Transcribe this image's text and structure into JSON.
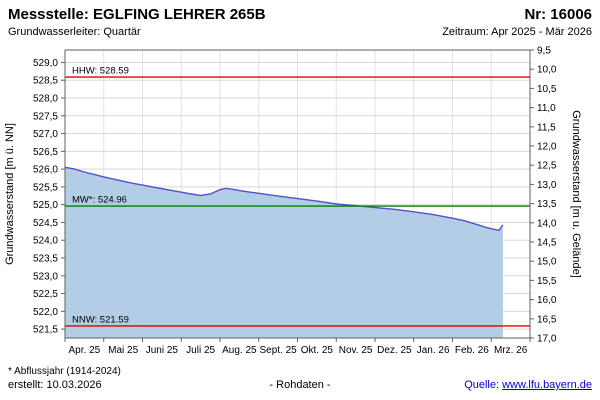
{
  "header": {
    "title": "Messstelle: EGLFING LEHRER 265B",
    "number": "Nr: 16006",
    "aquifer": "Grundwasserleiter: Quartär",
    "period": "Zeitraum: Apr 2025 - Mär 2026"
  },
  "footer": {
    "footnote": "* Abflussjahr (1914-2024)",
    "created": "erstellt:  10.03.2026",
    "center": "- Rohdaten -",
    "source_prefix": "Quelle:",
    "source_link": "www.lfu.bayern.de"
  },
  "chart_data": {
    "type": "area",
    "title": "Grundwasserstand Messstelle EGLFING LEHRER 265B",
    "ylabel_left": "Grundwasserstand [m ü. NN]",
    "ylabel_right": "Grundwasserstand [m u. Gelände]",
    "xlabels": [
      "Apr. 25",
      "Mai 25",
      "Juni 25",
      "Juli 25",
      "Aug. 25",
      "Sept. 25",
      "Okt. 25",
      "Nov. 25",
      "Dez. 25",
      "Jan. 26",
      "Feb. 26",
      "Mrz. 26"
    ],
    "xticks": [
      0,
      1,
      2,
      3,
      4,
      5,
      6,
      7,
      8,
      9,
      10,
      11,
      12
    ],
    "xlim": [
      0,
      12
    ],
    "ylim_left": [
      521.25,
      529.35
    ],
    "ylim_right": [
      9.5,
      17.0
    ],
    "grid": true,
    "yticks_left": [
      {
        "value": 529.0,
        "label": "529,0"
      },
      {
        "value": 528.5,
        "label": "528,5"
      },
      {
        "value": 528.0,
        "label": "528,0"
      },
      {
        "value": 527.5,
        "label": "527,5"
      },
      {
        "value": 527.0,
        "label": "527,0"
      },
      {
        "value": 526.5,
        "label": "526,5"
      },
      {
        "value": 526.0,
        "label": "526,0"
      },
      {
        "value": 525.5,
        "label": "525,5"
      },
      {
        "value": 525.0,
        "label": "525,0"
      },
      {
        "value": 524.5,
        "label": "524,5"
      },
      {
        "value": 524.0,
        "label": "524,0"
      },
      {
        "value": 523.5,
        "label": "523,5"
      },
      {
        "value": 523.0,
        "label": "523,0"
      },
      {
        "value": 522.5,
        "label": "522,5"
      },
      {
        "value": 522.0,
        "label": "522,0"
      },
      {
        "value": 521.5,
        "label": "521,5"
      }
    ],
    "yticks_right": [
      "9,5",
      "10,0",
      "10,5",
      "11,0",
      "11,5",
      "12,0",
      "12,5",
      "13,0",
      "13,5",
      "14,0",
      "14,5",
      "15,0",
      "15,5",
      "16,0",
      "16,5",
      "17,0"
    ],
    "reference_lines": [
      {
        "name": "HHW",
        "label": "HHW: 528.59",
        "value": 528.59,
        "color": "#e00000",
        "label_color": "#000000"
      },
      {
        "name": "MW",
        "label": "MW*: 524.96",
        "value": 524.96,
        "color": "#008000",
        "label_color": "#000000"
      },
      {
        "name": "NNW",
        "label": "NNW: 521.59",
        "value": 521.59,
        "color": "#e00000",
        "label_color": "#000000"
      }
    ],
    "series_color": "#5252c8",
    "fill_color": "#b3cde6",
    "x": [
      0,
      0.25,
      0.5,
      0.75,
      1,
      1.25,
      1.5,
      1.75,
      2,
      2.25,
      2.5,
      2.75,
      3,
      3.25,
      3.5,
      3.75,
      4,
      4.15,
      4.35,
      4.6,
      5,
      5.5,
      6,
      6.5,
      7,
      7.5,
      8,
      8.5,
      9,
      9.5,
      10,
      10.3,
      10.6,
      10.9,
      11.1,
      11.2,
      11.3
    ],
    "values": [
      526.05,
      526.0,
      525.92,
      525.85,
      525.78,
      525.72,
      525.66,
      525.6,
      525.55,
      525.5,
      525.45,
      525.4,
      525.35,
      525.3,
      525.26,
      525.3,
      525.42,
      525.46,
      525.43,
      525.38,
      525.32,
      525.24,
      525.17,
      525.1,
      525.02,
      524.97,
      524.92,
      524.87,
      524.8,
      524.72,
      524.62,
      524.55,
      524.45,
      524.35,
      524.3,
      524.28,
      524.43
    ]
  }
}
